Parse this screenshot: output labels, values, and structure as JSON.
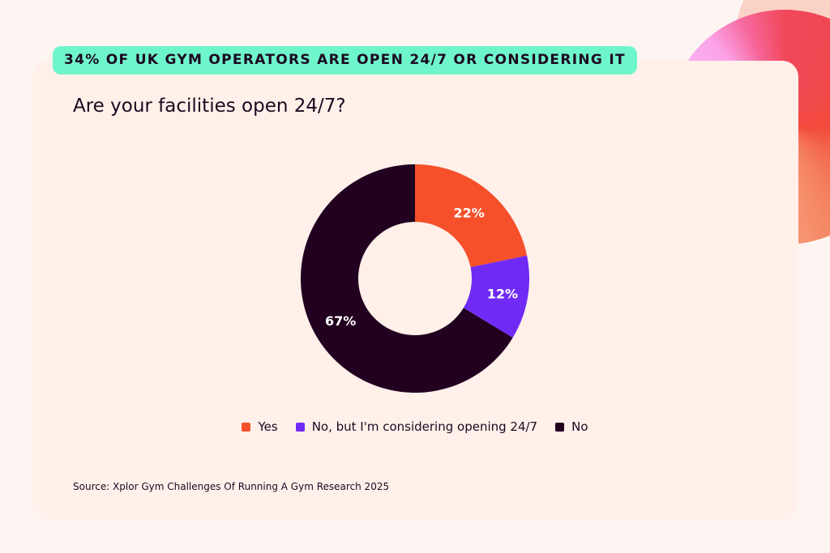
{
  "banner": "34% OF UK GYM OPERATORS ARE OPEN 24/7 OR CONSIDERING IT",
  "question": "Are your facilities open 24/7?",
  "source": "Source: Xplor Gym Challenges Of Running A Gym Research 2025",
  "colors": {
    "banner": "#6ff5cc",
    "card": "#fff0ea"
  },
  "chart_data": {
    "type": "pie",
    "style": "donut",
    "categories": [
      "Yes",
      "No, but I'm considering opening 24/7",
      "No"
    ],
    "values": [
      22,
      12,
      67
    ],
    "labels": [
      "22%",
      "12%",
      "67%"
    ],
    "colors": [
      "#f5502a",
      "#6f2bf5",
      "#220020"
    ],
    "legend": "bottom"
  }
}
